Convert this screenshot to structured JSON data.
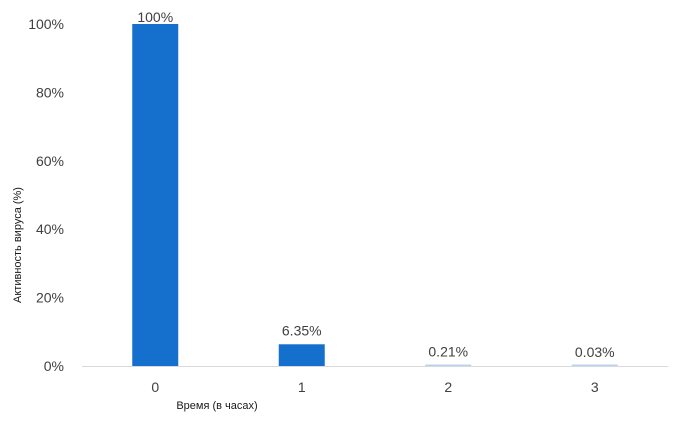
{
  "chart_data": {
    "type": "bar",
    "title": "",
    "xlabel": "Время (в часах)",
    "ylabel": "Активность вируса (%)",
    "categories": [
      "0",
      "1",
      "2",
      "3"
    ],
    "values": [
      100,
      6.35,
      0.21,
      0.03
    ],
    "data_labels": [
      "100%",
      "6.35%",
      "0.21%",
      "0.03%"
    ],
    "ylim": [
      0,
      100
    ],
    "y_ticks": [
      0,
      20,
      40,
      60,
      80,
      100
    ],
    "y_tick_labels": [
      "0%",
      "20%",
      "40%",
      "60%",
      "80%",
      "100%"
    ],
    "grid": false,
    "legend": "none",
    "colors": {
      "bar": "#1570CD",
      "bar_faint": "#BBD3EE",
      "axis": "#D9D9D9",
      "text": "#404040"
    }
  }
}
